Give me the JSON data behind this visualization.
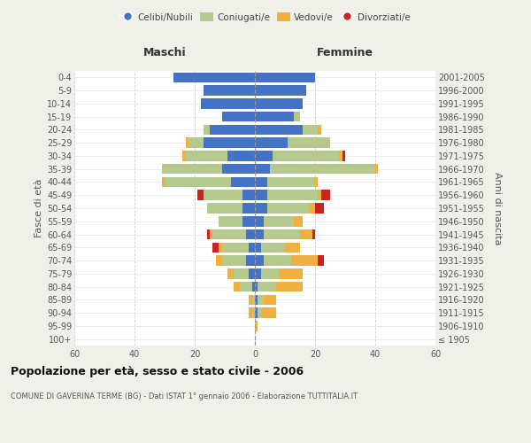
{
  "age_groups": [
    "100+",
    "95-99",
    "90-94",
    "85-89",
    "80-84",
    "75-79",
    "70-74",
    "65-69",
    "60-64",
    "55-59",
    "50-54",
    "45-49",
    "40-44",
    "35-39",
    "30-34",
    "25-29",
    "20-24",
    "15-19",
    "10-14",
    "5-9",
    "0-4"
  ],
  "birth_years": [
    "≤ 1905",
    "1906-1910",
    "1911-1915",
    "1916-1920",
    "1921-1925",
    "1926-1930",
    "1931-1935",
    "1936-1940",
    "1941-1945",
    "1946-1950",
    "1951-1955",
    "1956-1960",
    "1961-1965",
    "1966-1970",
    "1971-1975",
    "1976-1980",
    "1981-1985",
    "1986-1990",
    "1991-1995",
    "1996-2000",
    "2001-2005"
  ],
  "colors": {
    "celibi": "#4472c4",
    "coniugati": "#b5c98e",
    "vedovi": "#f0b040",
    "divorziati": "#cc2222"
  },
  "maschi": {
    "celibi": [
      0,
      0,
      0,
      0,
      1,
      2,
      3,
      2,
      3,
      4,
      4,
      4,
      8,
      11,
      9,
      17,
      15,
      11,
      18,
      17,
      27
    ],
    "coniugati": [
      0,
      0,
      1,
      1,
      4,
      5,
      8,
      9,
      11,
      8,
      12,
      13,
      22,
      20,
      14,
      5,
      2,
      0,
      0,
      0,
      0
    ],
    "vedovi": [
      0,
      0,
      1,
      1,
      2,
      2,
      2,
      1,
      1,
      0,
      0,
      0,
      1,
      0,
      1,
      1,
      0,
      0,
      0,
      0,
      0
    ],
    "divorziati": [
      0,
      0,
      0,
      0,
      0,
      0,
      0,
      2,
      1,
      0,
      0,
      2,
      0,
      0,
      0,
      0,
      0,
      0,
      0,
      0,
      0
    ]
  },
  "femmine": {
    "celibi": [
      0,
      0,
      1,
      1,
      1,
      2,
      3,
      2,
      3,
      3,
      4,
      4,
      4,
      5,
      6,
      11,
      16,
      13,
      16,
      17,
      20
    ],
    "coniugati": [
      0,
      0,
      1,
      2,
      6,
      6,
      9,
      8,
      12,
      10,
      14,
      17,
      16,
      35,
      22,
      14,
      5,
      2,
      0,
      0,
      0
    ],
    "vedovi": [
      0,
      1,
      5,
      4,
      9,
      8,
      9,
      5,
      4,
      3,
      2,
      1,
      1,
      1,
      1,
      0,
      1,
      0,
      0,
      0,
      0
    ],
    "divorziati": [
      0,
      0,
      0,
      0,
      0,
      0,
      2,
      0,
      1,
      0,
      3,
      3,
      0,
      0,
      1,
      0,
      0,
      0,
      0,
      0,
      0
    ]
  },
  "xlim": 60,
  "title": "Popolazione per età, sesso e stato civile - 2006",
  "subtitle": "COMUNE DI GAVERINA TERME (BG) - Dati ISTAT 1° gennaio 2006 - Elaborazione TUTTITALIA.IT",
  "ylabel_left": "Fasce di età",
  "ylabel_right": "Anni di nascita",
  "xlabel_maschi": "Maschi",
  "xlabel_femmine": "Femmine",
  "legend_labels": [
    "Celibi/Nubili",
    "Coniugati/e",
    "Vedovi/e",
    "Divorziati/e"
  ],
  "bg_color": "#f0f0eb",
  "plot_bg": "#ffffff"
}
